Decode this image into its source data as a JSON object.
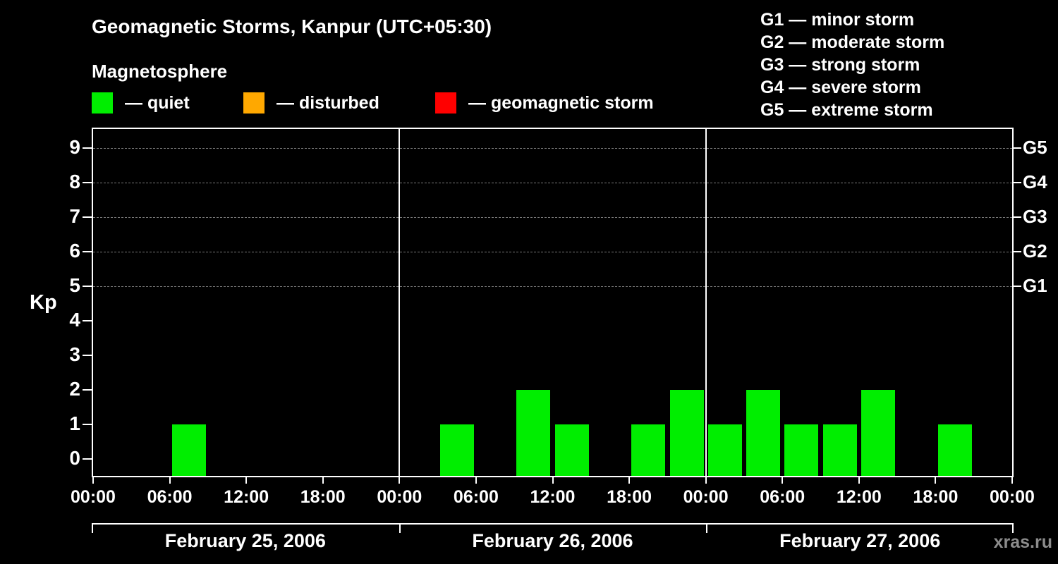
{
  "title": "Geomagnetic Storms, Kanpur (UTC+05:30)",
  "subtitle": "Magnetosphere",
  "watermark": "xras.ru",
  "legend": {
    "items": [
      {
        "name": "quiet",
        "label": "— quiet",
        "color": "#00ee00"
      },
      {
        "name": "disturbed",
        "label": "— disturbed",
        "color": "#ffa800"
      },
      {
        "name": "geomagnetic-storm",
        "label": "— geomagnetic storm",
        "color": "#ff0000"
      }
    ]
  },
  "g_scale": {
    "items": [
      {
        "name": "g1",
        "label": "G1 — minor storm"
      },
      {
        "name": "g2",
        "label": "G2 — moderate storm"
      },
      {
        "name": "g3",
        "label": "G3 — strong storm"
      },
      {
        "name": "g4",
        "label": "G4 — severe storm"
      },
      {
        "name": "g5",
        "label": "G5 — extreme storm"
      }
    ]
  },
  "chart_data": {
    "type": "bar",
    "title": "Geomagnetic Storms, Kanpur (UTC+05:30)",
    "ylabel": "Kp",
    "ylim": [
      0,
      9
    ],
    "yticks": [
      0,
      1,
      2,
      3,
      4,
      5,
      6,
      7,
      8,
      9
    ],
    "gridline_levels": [
      5,
      6,
      7,
      8,
      9
    ],
    "right_axis": [
      {
        "value": 5,
        "label": "G1"
      },
      {
        "value": 6,
        "label": "G2"
      },
      {
        "value": 7,
        "label": "G3"
      },
      {
        "value": 8,
        "label": "G4"
      },
      {
        "value": 9,
        "label": "G5"
      }
    ],
    "bar_color": "#00ee00",
    "interval_hours": 3,
    "x_tick_labels": [
      "00:00",
      "06:00",
      "12:00",
      "18:00",
      "00:00",
      "06:00",
      "12:00",
      "18:00",
      "00:00",
      "06:00",
      "12:00",
      "18:00",
      "00:00"
    ],
    "days": [
      {
        "date": "February 25, 2006",
        "kp": [
          0,
          0,
          1,
          0,
          0,
          0,
          0,
          0
        ]
      },
      {
        "date": "February 26, 2006",
        "kp": [
          0,
          1,
          0,
          2,
          1,
          0,
          1,
          2
        ]
      },
      {
        "date": "February 27, 2006",
        "kp": [
          1,
          2,
          1,
          1,
          2,
          0,
          1,
          0
        ]
      }
    ]
  }
}
